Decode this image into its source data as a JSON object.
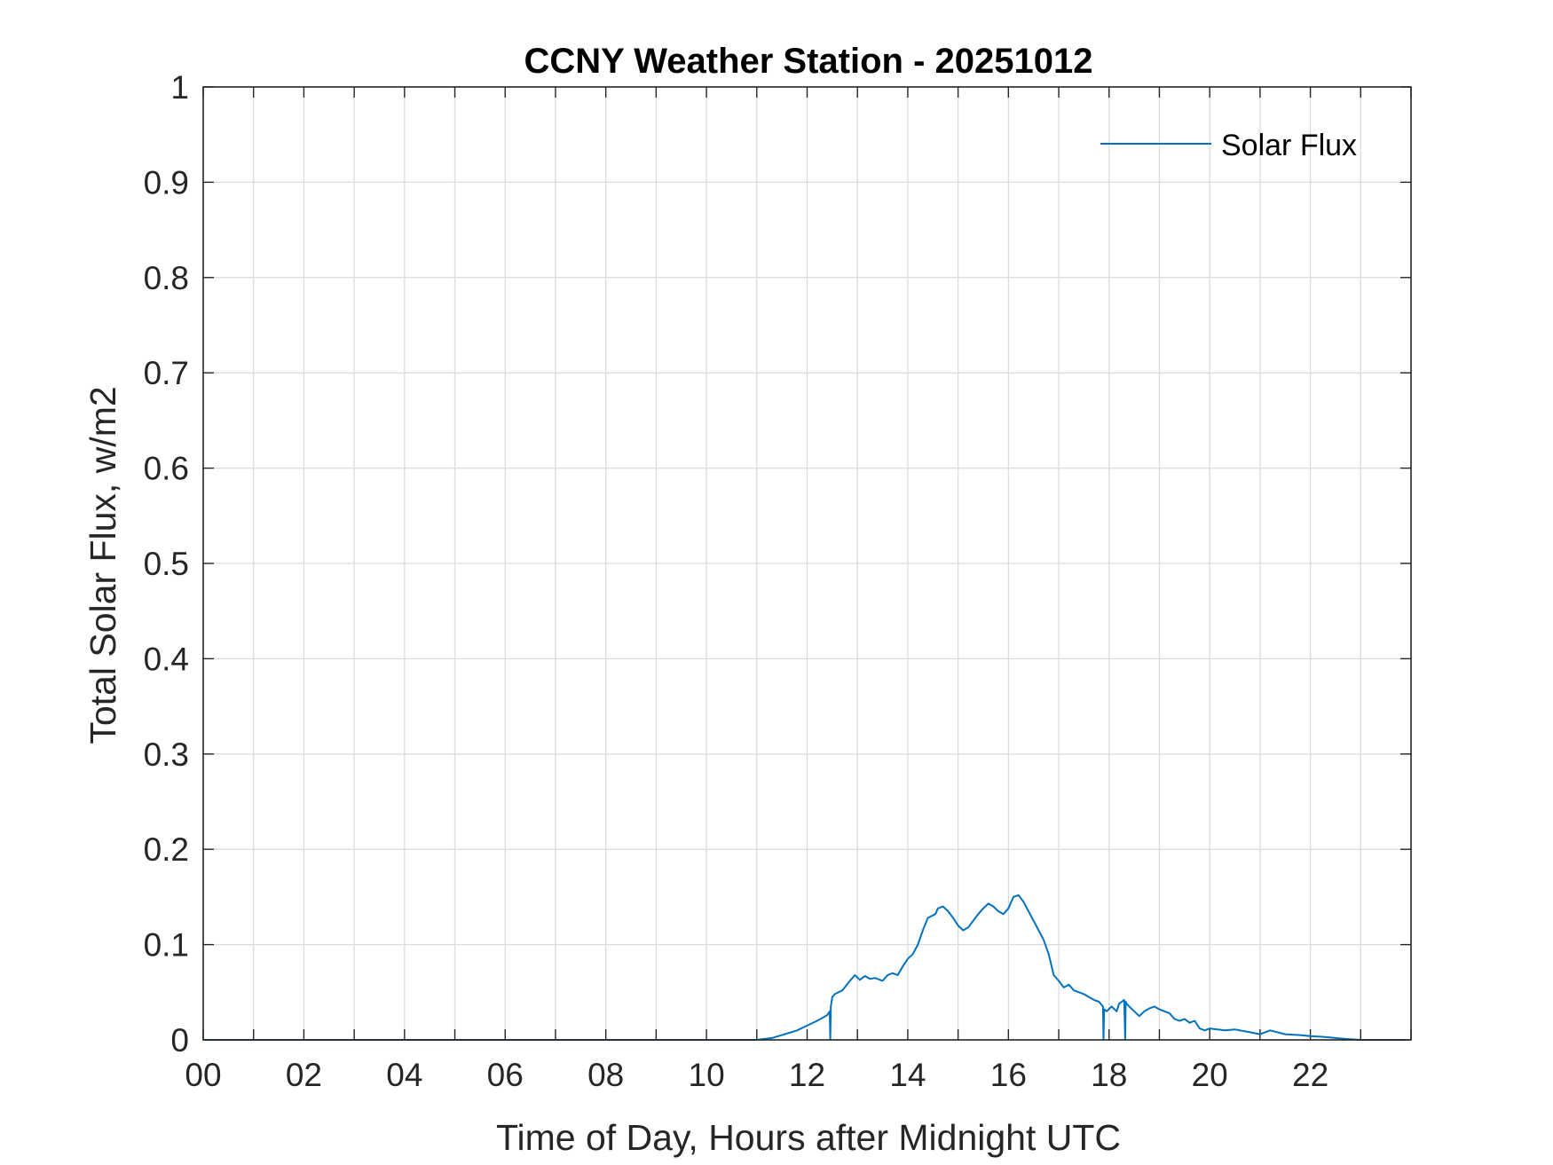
{
  "chart_data": {
    "type": "line",
    "title": "CCNY Weather Station - 20251012",
    "xlabel": "Time of Day, Hours after Midnight UTC",
    "ylabel": "Total Solar Flux, w/m2",
    "xlim": [
      0,
      24
    ],
    "ylim": [
      0,
      1
    ],
    "x_ticks": [
      0,
      2,
      4,
      6,
      8,
      10,
      12,
      14,
      16,
      18,
      20,
      22
    ],
    "x_tick_labels": [
      "00",
      "02",
      "04",
      "06",
      "08",
      "10",
      "12",
      "14",
      "16",
      "18",
      "20",
      "22"
    ],
    "y_ticks": [
      0,
      0.1,
      0.2,
      0.3,
      0.4,
      0.5,
      0.6,
      0.7,
      0.8,
      0.9,
      1
    ],
    "y_tick_labels": [
      "0",
      "0.1",
      "0.2",
      "0.3",
      "0.4",
      "0.5",
      "0.6",
      "0.7",
      "0.8",
      "0.9",
      "1"
    ],
    "grid": true,
    "legend_position": "top-right",
    "color": "#0072BD",
    "series": [
      {
        "name": "Solar Flux",
        "x": [
          0,
          11.0,
          11.3,
          11.5,
          11.8,
          12.0,
          12.2,
          12.4,
          12.45,
          12.46,
          12.47,
          12.5,
          12.55,
          12.7,
          12.85,
          12.95,
          13.05,
          13.15,
          13.25,
          13.35,
          13.5,
          13.6,
          13.7,
          13.8,
          13.9,
          14.0,
          14.1,
          14.2,
          14.3,
          14.4,
          14.55,
          14.6,
          14.7,
          14.8,
          14.9,
          15.0,
          15.1,
          15.2,
          15.3,
          15.4,
          15.5,
          15.6,
          15.7,
          15.8,
          15.9,
          16.0,
          16.1,
          16.2,
          16.3,
          16.4,
          16.5,
          16.6,
          16.7,
          16.8,
          16.9,
          17.0,
          17.1,
          17.2,
          17.3,
          17.4,
          17.5,
          17.6,
          17.7,
          17.8,
          17.88,
          17.89,
          17.9,
          17.91,
          17.95,
          18.05,
          18.15,
          18.2,
          18.3,
          18.32,
          18.33,
          18.35,
          18.4,
          18.5,
          18.6,
          18.7,
          18.8,
          18.9,
          19.0,
          19.1,
          19.2,
          19.3,
          19.4,
          19.5,
          19.6,
          19.7,
          19.8,
          19.9,
          20.0,
          20.3,
          20.5,
          20.8,
          21.0,
          21.2,
          21.5,
          21.8,
          22.0,
          22.3,
          22.5,
          22.7,
          23.0,
          23.5,
          23.9
        ],
        "y": [
          0,
          0,
          0.002,
          0.005,
          0.01,
          0.015,
          0.02,
          0.026,
          0.03,
          0.001,
          0.035,
          0.045,
          0.048,
          0.052,
          0.062,
          0.068,
          0.063,
          0.067,
          0.064,
          0.065,
          0.062,
          0.068,
          0.07,
          0.068,
          0.077,
          0.085,
          0.09,
          0.1,
          0.115,
          0.128,
          0.132,
          0.138,
          0.14,
          0.135,
          0.128,
          0.12,
          0.115,
          0.118,
          0.125,
          0.132,
          0.138,
          0.143,
          0.14,
          0.135,
          0.132,
          0.138,
          0.15,
          0.152,
          0.145,
          0.135,
          0.125,
          0.115,
          0.105,
          0.09,
          0.068,
          0.062,
          0.055,
          0.058,
          0.052,
          0.05,
          0.048,
          0.045,
          0.042,
          0.04,
          0.035,
          0.001,
          0.03,
          0.032,
          0.03,
          0.035,
          0.03,
          0.038,
          0.042,
          0.001,
          0.04,
          0.038,
          0.035,
          0.03,
          0.025,
          0.03,
          0.033,
          0.035,
          0.032,
          0.03,
          0.028,
          0.022,
          0.02,
          0.022,
          0.018,
          0.02,
          0.012,
          0.01,
          0.012,
          0.01,
          0.011,
          0.008,
          0.006,
          0.01,
          0.006,
          0.005,
          0.004,
          0.003,
          0.002,
          0.001,
          0,
          0,
          0
        ]
      }
    ]
  }
}
